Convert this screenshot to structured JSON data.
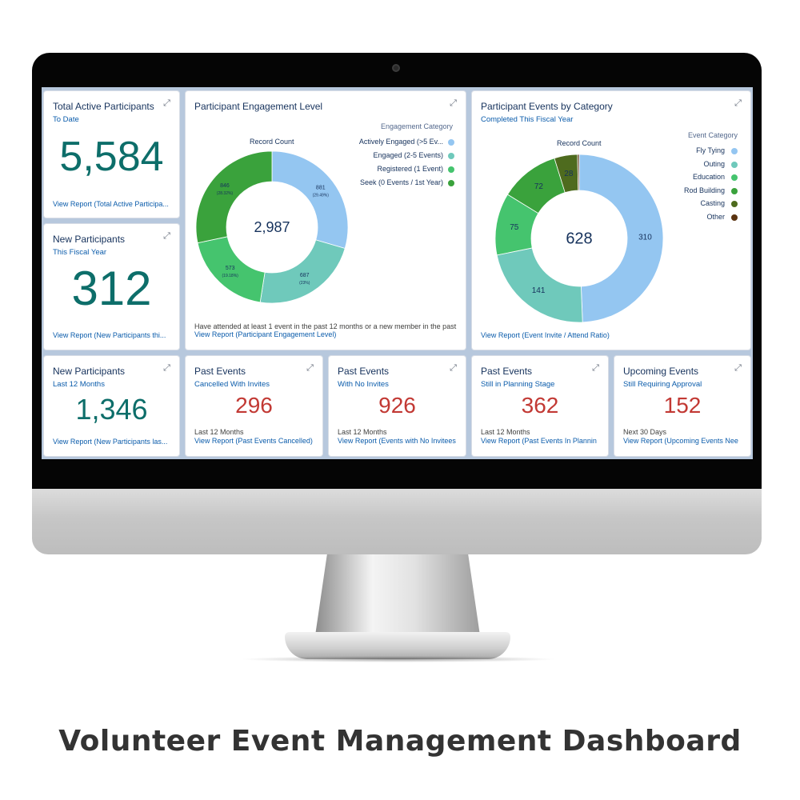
{
  "caption": "Volunteer Event Management Dashboard",
  "colors": {
    "teal": "#0d6e6a",
    "red": "#c23934",
    "link": "#0b5cab"
  },
  "cards": {
    "total_active": {
      "title": "Total Active Participants",
      "subtitle": "To Date",
      "value": "5,584",
      "link": "View Report (Total Active Participa..."
    },
    "new_fiscal": {
      "title": "New Participants",
      "subtitle": "This Fiscal Year",
      "value": "312",
      "link": "View Report (New Participants thi..."
    },
    "new_12m": {
      "title": "New Participants",
      "subtitle": "Last 12 Months",
      "value": "1,346",
      "link": "View Report (New Participants las..."
    },
    "cancelled": {
      "title": "Past Events",
      "subtitle": "Cancelled With Invites",
      "value": "296",
      "note": "Last 12 Months",
      "link": "View Report (Past Events Cancelled)"
    },
    "no_invites": {
      "title": "Past Events",
      "subtitle": "With No Invites",
      "value": "926",
      "note": "Last 12 Months",
      "link": "View Report (Events with No Invitees"
    },
    "planning": {
      "title": "Past Events",
      "subtitle": "Still in Planning Stage",
      "value": "362",
      "note": "Last 12 Months",
      "link": "View Report (Past Events In Plannin"
    },
    "upcoming": {
      "title": "Upcoming Events",
      "subtitle": "Still Requiring Approval",
      "value": "152",
      "note": "Next 30 Days",
      "link": "View Report (Upcoming Events Nee"
    },
    "engagement": {
      "title": "Participant Engagement Level",
      "note": "Have attended at least 1 event in the past 12 months or a new member in the past",
      "link": "View Report (Participant Engagement Level)"
    },
    "events_category": {
      "title": "Participant Events by Category",
      "subtitle": "Completed This Fiscal Year",
      "link": "View Report (Event Invite / Attend Ratio)"
    }
  },
  "chart_data": [
    {
      "type": "pie",
      "subtype": "donut",
      "title": "Record Count",
      "center_label": "2,987",
      "legend_title": "Engagement Category",
      "legend_position": "top-right",
      "categories": [
        "Actively Engaged (>5 Ev...",
        "Engaged (2-5 Events)",
        "Registered (1 Event)",
        "Seek (0 Events / 1st Year)"
      ],
      "values": [
        881,
        687,
        573,
        846
      ],
      "value_labels": [
        "881",
        "687",
        "573",
        "846"
      ],
      "percent_labels": [
        "(29.49%)",
        "(23%)",
        "(19.18%)",
        "(28.32%)"
      ],
      "colors": [
        "#94c6f1",
        "#6fc9bb",
        "#45c46e",
        "#3aa23c"
      ]
    },
    {
      "type": "pie",
      "subtype": "donut",
      "title": "Record Count",
      "center_label": "628",
      "legend_title": "Event Category",
      "legend_position": "top-right",
      "categories": [
        "Fly Tying",
        "Outing",
        "Education",
        "Rod Building",
        "Casting",
        "Other"
      ],
      "values": [
        310,
        141,
        75,
        72,
        28,
        2
      ],
      "value_labels": [
        "310",
        "141",
        "75",
        "72",
        "28",
        ""
      ],
      "colors": [
        "#94c6f1",
        "#6fc9bb",
        "#45c46e",
        "#3aa23c",
        "#4e6b1e",
        "#5a3310"
      ]
    }
  ]
}
